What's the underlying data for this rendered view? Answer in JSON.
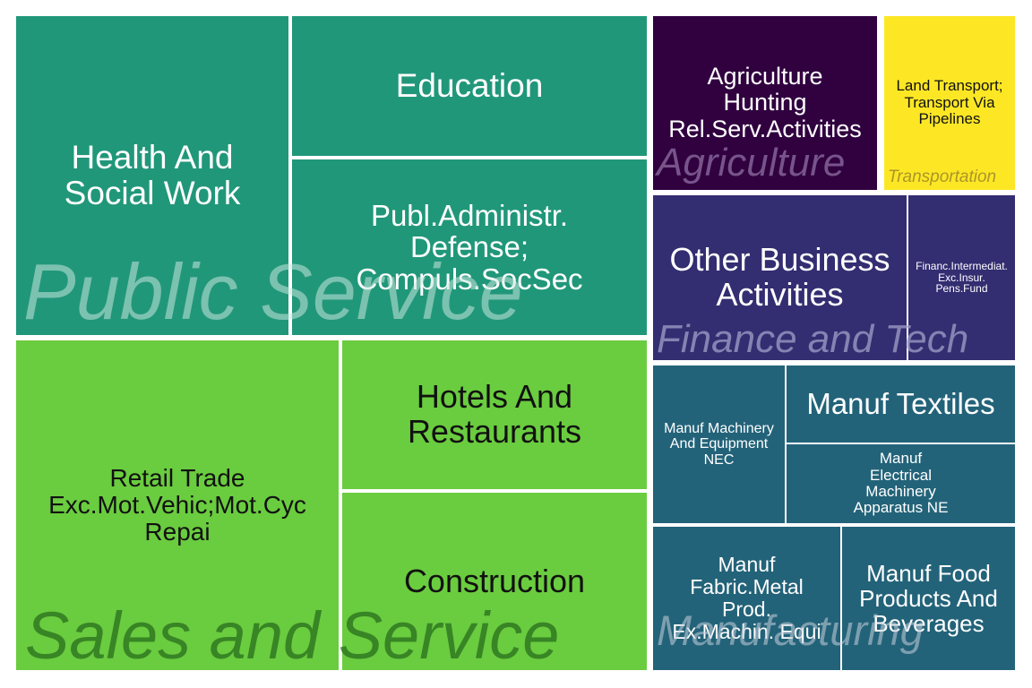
{
  "chart_data": {
    "type": "treemap",
    "groups": [
      {
        "name": "Public Service",
        "color": "#21977a",
        "label_color": "rgba(200,230,220,0.55)",
        "text_color": "#ffffff",
        "items": [
          {
            "label": "Health And Social Work",
            "display": "Health And\nSocial Work"
          },
          {
            "label": "Education",
            "display": "Education"
          },
          {
            "label": "Publ.Administr. Defense; Compuls.SocSec",
            "display": "Publ.Administr.\nDefense;\nCompuls.SocSec"
          }
        ]
      },
      {
        "name": "Sales and Service",
        "color": "#6acc3f",
        "label_color": "rgba(40,110,30,0.75)",
        "text_color": "#111111",
        "items": [
          {
            "label": "Retail Trade Exc.Mot.Vehic;Mot.Cyc Repai",
            "display": "Retail Trade\nExc.Mot.Vehic;Mot.Cyc\nRepai"
          },
          {
            "label": "Hotels And Restaurants",
            "display": "Hotels And\nRestaurants"
          },
          {
            "label": "Construction",
            "display": "Construction"
          }
        ]
      },
      {
        "name": "Agriculture",
        "color": "#30003f",
        "label_color": "rgba(150,120,170,0.7)",
        "text_color": "#ffffff",
        "items": [
          {
            "label": "Agriculture Hunting Rel.Serv.Activities",
            "display": "Agriculture\nHunting\nRel.Serv.Activities"
          }
        ]
      },
      {
        "name": "Transportation",
        "color": "#fde725",
        "label_color": "rgba(150,130,40,0.8)",
        "text_color": "#111111",
        "items": [
          {
            "label": "Land Transport; Transport Via Pipelines",
            "display": "Land Transport;\nTransport Via\nPipelines"
          }
        ]
      },
      {
        "name": "Finance and Tech",
        "color": "#332d71",
        "label_color": "rgba(160,160,200,0.75)",
        "text_color": "#ffffff",
        "items": [
          {
            "label": "Other Business Activities",
            "display": "Other Business\nActivities"
          },
          {
            "label": "Financ.Intermediat. Exc.Insur. Pens.Fund",
            "display": "Financ.Intermediat.\nExc.Insur.\nPens.Fund"
          }
        ]
      },
      {
        "name": "Manufacturing",
        "color": "#236379",
        "label_color": "rgba(200,210,220,0.55)",
        "text_color": "#ffffff",
        "items": [
          {
            "label": "Manuf Machinery And Equipment NEC",
            "display": "Manuf Machinery\nAnd Equipment\nNEC"
          },
          {
            "label": "Manuf Textiles",
            "display": "Manuf Textiles"
          },
          {
            "label": "Manuf Electrical Machinery Apparatus NE",
            "display": "Manuf\nElectrical\nMachinery\nApparatus NE"
          },
          {
            "label": "Manuf Fabric.Metal Prod. Ex.Machin. Equi",
            "display": "Manuf\nFabric.Metal\nProd.\nEx.Machin. Equi"
          },
          {
            "label": "Manuf Food Products And Beverages",
            "display": "Manuf Food\nProducts And\nBeverages"
          }
        ]
      }
    ]
  }
}
